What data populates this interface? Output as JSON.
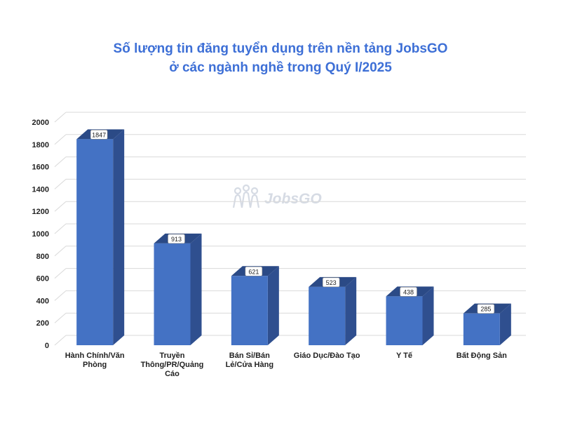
{
  "title_line1": "Số lượng tin đăng tuyển dụng trên nền tảng JobsGO",
  "title_line2": "ở các ngành nghề trong Quý I/2025",
  "watermark": "JobsGO",
  "colors": {
    "title": "#3d6fd6",
    "bar_front": "#4472c4",
    "bar_side": "#2f4f8f",
    "bar_top": "#2b4a86",
    "grid": "#d9d9d9"
  },
  "chart_data": {
    "type": "bar",
    "style": "3d-column",
    "title": "Số lượng tin đăng tuyển dụng trên nền tảng JobsGO ở các ngành nghề trong Quý I/2025",
    "xlabel": "",
    "ylabel": "",
    "ylim": [
      0,
      2000
    ],
    "yticks": [
      0,
      200,
      400,
      600,
      800,
      1000,
      1200,
      1400,
      1600,
      1800,
      2000
    ],
    "grid": true,
    "legend": "none",
    "categories": [
      [
        "Hành Chính/Văn",
        "Phòng"
      ],
      [
        "Truyền",
        "Thông/PR/Quảng",
        "Cáo"
      ],
      [
        "Bán Sỉ/Bán",
        "Lẻ/Cửa Hàng"
      ],
      [
        "Giáo Dục/Đào Tạo"
      ],
      [
        "Y Tế"
      ],
      [
        "Bất Động Sản"
      ]
    ],
    "values": [
      1847,
      913,
      621,
      523,
      438,
      285
    ]
  }
}
